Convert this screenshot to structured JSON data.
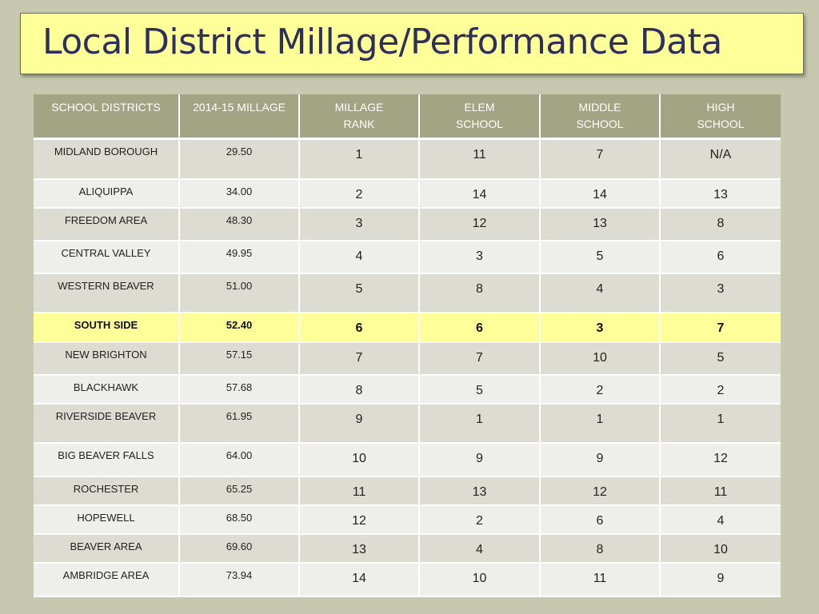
{
  "title": "Local District Millage/Performance Data",
  "columns": [
    "SCHOOL DISTRICTS",
    "2014-15 MILLAGE",
    "MILLAGE RANK",
    "ELEM SCHOOL",
    "MIDDLE SCHOOL",
    "HIGH SCHOOL"
  ],
  "header_lines": [
    [
      "SCHOOL DISTRICTS"
    ],
    [
      "2014-15 MILLAGE"
    ],
    [
      "MILLAGE",
      "RANK"
    ],
    [
      "ELEM",
      "SCHOOL"
    ],
    [
      "MIDDLE",
      "SCHOOL"
    ],
    [
      "HIGH",
      "SCHOOL"
    ]
  ],
  "highlight_row": "SOUTH SIDE",
  "colors": {
    "background": "#c6c9b0",
    "title_fill": "#ffff99",
    "title_text": "#2f2f5c",
    "header_fill": "#a2a583",
    "row_dark": "#dcdcd3",
    "row_light": "#eeeeea",
    "highlight": "#ffff99"
  },
  "chart_data": {
    "type": "table",
    "title": "Local District Millage/Performance Data",
    "columns": [
      "SCHOOL DISTRICTS",
      "2014-15 MILLAGE",
      "MILLAGE RANK",
      "ELEM SCHOOL",
      "MIDDLE SCHOOL",
      "HIGH SCHOOL"
    ],
    "rows": [
      [
        "MIDLAND BOROUGH",
        "29.50",
        "1",
        "11",
        "7",
        "N/A"
      ],
      [
        "ALIQUIPPA",
        "34.00",
        "2",
        "14",
        "14",
        "13"
      ],
      [
        "FREEDOM AREA",
        "48.30",
        "3",
        "12",
        "13",
        "8"
      ],
      [
        "CENTRAL VALLEY",
        "49.95",
        "4",
        "3",
        "5",
        "6"
      ],
      [
        "WESTERN BEAVER",
        "51.00",
        "5",
        "8",
        "4",
        "3"
      ],
      [
        "SOUTH SIDE",
        "52.40",
        "6",
        "6",
        "3",
        "7"
      ],
      [
        "NEW BRIGHTON",
        "57.15",
        "7",
        "7",
        "10",
        "5"
      ],
      [
        "BLACKHAWK",
        "57.68",
        "8",
        "5",
        "2",
        "2"
      ],
      [
        "RIVERSIDE BEAVER",
        "61.95",
        "9",
        "1",
        "1",
        "1"
      ],
      [
        "BIG BEAVER FALLS",
        "64.00",
        "10",
        "9",
        "9",
        "12"
      ],
      [
        "ROCHESTER",
        "65.25",
        "11",
        "13",
        "12",
        "11"
      ],
      [
        "HOPEWELL",
        "68.50",
        "12",
        "2",
        "6",
        "4"
      ],
      [
        "BEAVER AREA",
        "69.60",
        "13",
        "4",
        "8",
        "10"
      ],
      [
        "AMBRIDGE AREA",
        "73.94",
        "14",
        "10",
        "11",
        "9"
      ]
    ]
  }
}
